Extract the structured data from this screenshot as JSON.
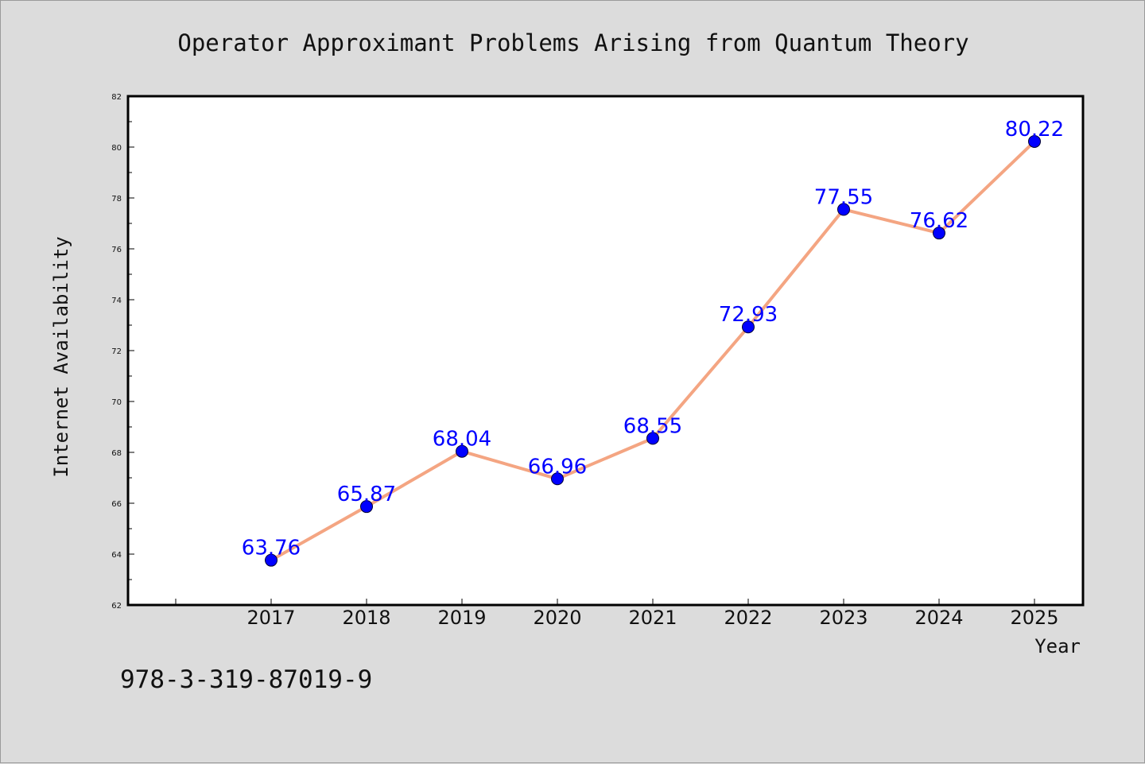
{
  "chart_data": {
    "type": "line",
    "title": "Operator Approximant Problems Arising from Quantum Theory",
    "xlabel": "Year",
    "ylabel": "Internet Availability",
    "categories": [
      "2017",
      "2018",
      "2019",
      "2020",
      "2021",
      "2022",
      "2023",
      "2024",
      "2025"
    ],
    "series": [
      {
        "values": [
          63.76,
          65.87,
          68.04,
          66.96,
          68.55,
          72.93,
          77.55,
          76.62,
          80.22
        ],
        "data_labels": [
          "63.76",
          "65.87",
          "68.04",
          "66.96",
          "68.55",
          "72.93",
          "77.55",
          "76.62",
          "80.22"
        ],
        "line_color": "#f4a582",
        "marker_color": "#0000ff"
      }
    ],
    "ylim": [
      62,
      82
    ],
    "yticks": [
      "62",
      "64",
      "66",
      "68",
      "70",
      "72",
      "74",
      "76",
      "78",
      "80",
      "82"
    ],
    "grid": false,
    "legend": "none",
    "label_color": "#0000ff"
  },
  "footer": {
    "isbn": "978-3-319-87019-9"
  }
}
